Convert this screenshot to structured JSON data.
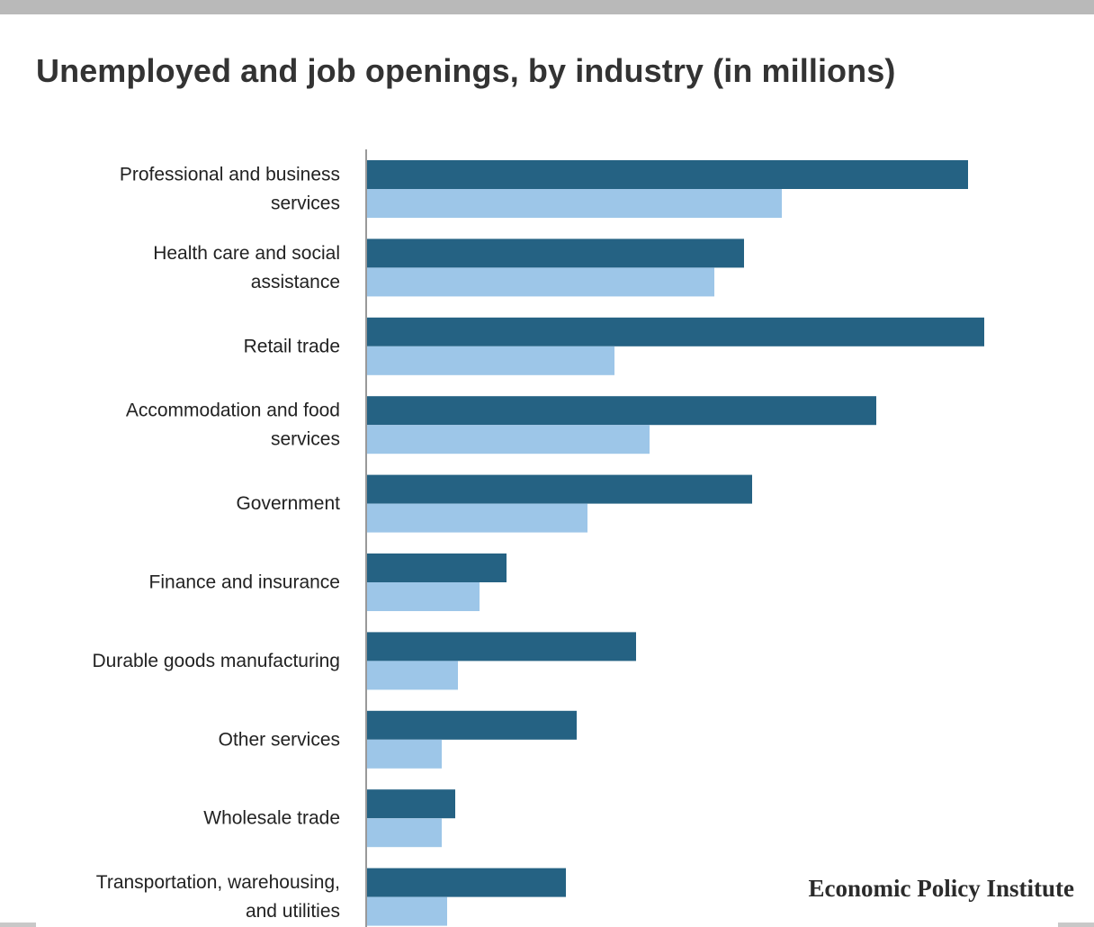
{
  "page": {
    "title": "Unemployed and job openings, by industry (in millions)",
    "brand": "Economic Policy Institute"
  },
  "colors": {
    "unemployed": "#256283",
    "job_openings": "#9dc6e8",
    "axis": "#999999",
    "top_bar": "#b9b9b9"
  },
  "chart_data": {
    "type": "bar",
    "orientation": "horizontal",
    "title": "Unemployed and job openings, by industry (in millions)",
    "categories": [
      [
        "Professional and business",
        "services"
      ],
      [
        "Health care and social",
        "assistance"
      ],
      [
        "Retail trade"
      ],
      [
        "Accommodation and food",
        "services"
      ],
      [
        "Government"
      ],
      [
        "Finance and insurance"
      ],
      [
        "Durable goods manufacturing"
      ],
      [
        "Other services"
      ],
      [
        "Wholesale trade"
      ],
      [
        "Transportation, warehousing,",
        "and utilities"
      ]
    ],
    "series": [
      {
        "key": "unemployed",
        "values": [
          2.23,
          1.4,
          2.29,
          1.89,
          1.43,
          0.52,
          1.0,
          0.78,
          0.33,
          0.74
        ]
      },
      {
        "key": "job_openings",
        "values": [
          1.54,
          1.29,
          0.92,
          1.05,
          0.82,
          0.42,
          0.34,
          0.28,
          0.28,
          0.3
        ]
      }
    ],
    "xlim": [
      0,
      2.5
    ],
    "legend": "none",
    "grid": false
  }
}
